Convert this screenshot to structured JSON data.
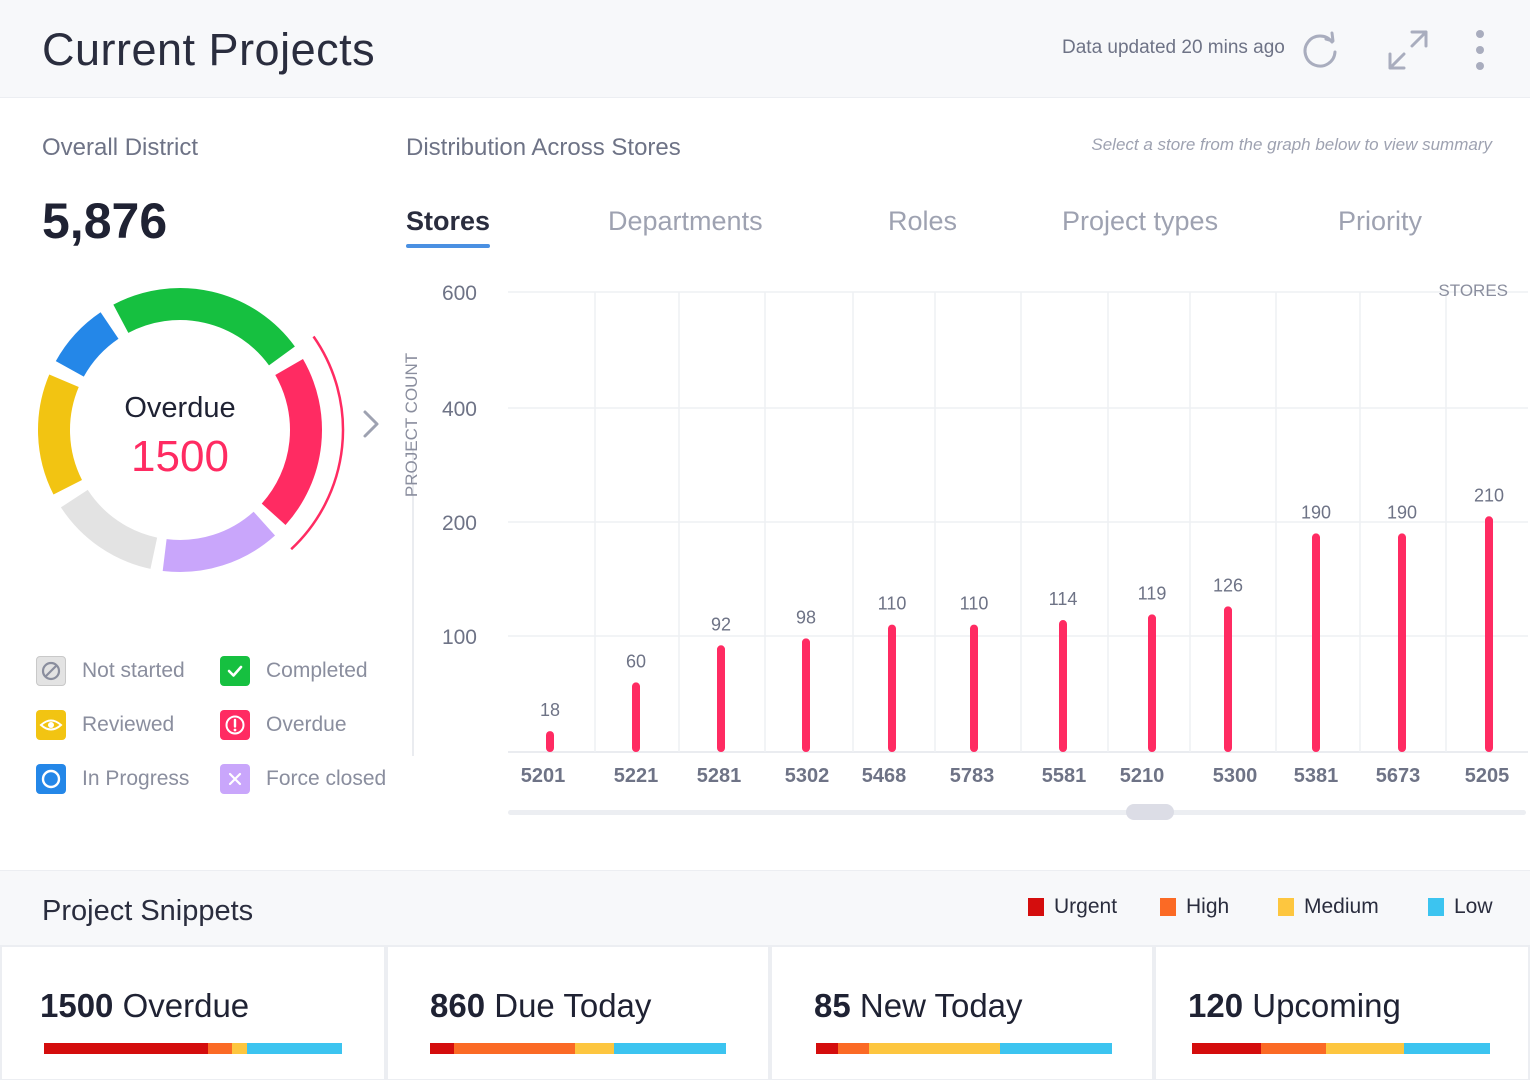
{
  "header": {
    "title": "Current Projects",
    "updated": "Data updated 20 mins ago"
  },
  "overall": {
    "label": "Overall District",
    "value": "5,876",
    "donut_label": "Overdue",
    "donut_value": "1500"
  },
  "legend": [
    {
      "label": "Not started",
      "icon": "not-started-icon",
      "color": "#e3e3e3"
    },
    {
      "label": "Completed",
      "icon": "completed-icon",
      "color": "#16c040"
    },
    {
      "label": "Reviewed",
      "icon": "reviewed-icon",
      "color": "#f2c412"
    },
    {
      "label": "Overdue",
      "icon": "overdue-icon",
      "color": "#ff2b62"
    },
    {
      "label": "In Progress",
      "icon": "in-progress-icon",
      "color": "#2487e8"
    },
    {
      "label": "Force closed",
      "icon": "force-closed-icon",
      "color": "#c9a6fb"
    }
  ],
  "distribution": {
    "label": "Distribution Across Stores",
    "hint": "Select a store from the graph below to view summary",
    "tabs": [
      "Stores",
      "Departments",
      "Roles",
      "Project types",
      "Priority"
    ],
    "active_tab": "Stores"
  },
  "chart_data": {
    "type": "bar",
    "ylabel": "PROJECT COUNT",
    "xlabel": "STORES",
    "y_ticks": [
      100,
      200,
      400,
      600
    ],
    "categories": [
      "5201",
      "5221",
      "5281",
      "5302",
      "5468",
      "5783",
      "5581",
      "5210",
      "5300",
      "5381",
      "5673",
      "5205"
    ],
    "values": [
      18,
      60,
      92,
      98,
      110,
      110,
      114,
      119,
      126,
      190,
      190,
      210
    ],
    "color": "#ff2b62"
  },
  "snippets": {
    "title": "Project Snippets",
    "priorities": [
      {
        "label": "Urgent",
        "color": "#d40d0d"
      },
      {
        "label": "High",
        "color": "#fb6a25"
      },
      {
        "label": "Medium",
        "color": "#fdc63f"
      },
      {
        "label": "Low",
        "color": "#3cc4f0"
      }
    ],
    "cards": [
      {
        "count": "1500",
        "label": "Overdue",
        "parts": [
          0.55,
          0.08,
          0.05,
          0.32
        ]
      },
      {
        "count": "860",
        "label": "Due Today",
        "parts": [
          0.08,
          0.41,
          0.13,
          0.38
        ]
      },
      {
        "count": "85",
        "label": "New Today",
        "parts": [
          0.075,
          0.105,
          0.44,
          0.38
        ]
      },
      {
        "count": "120",
        "label": "Upcoming",
        "parts": [
          0.23,
          0.22,
          0.26,
          0.29
        ]
      }
    ]
  }
}
